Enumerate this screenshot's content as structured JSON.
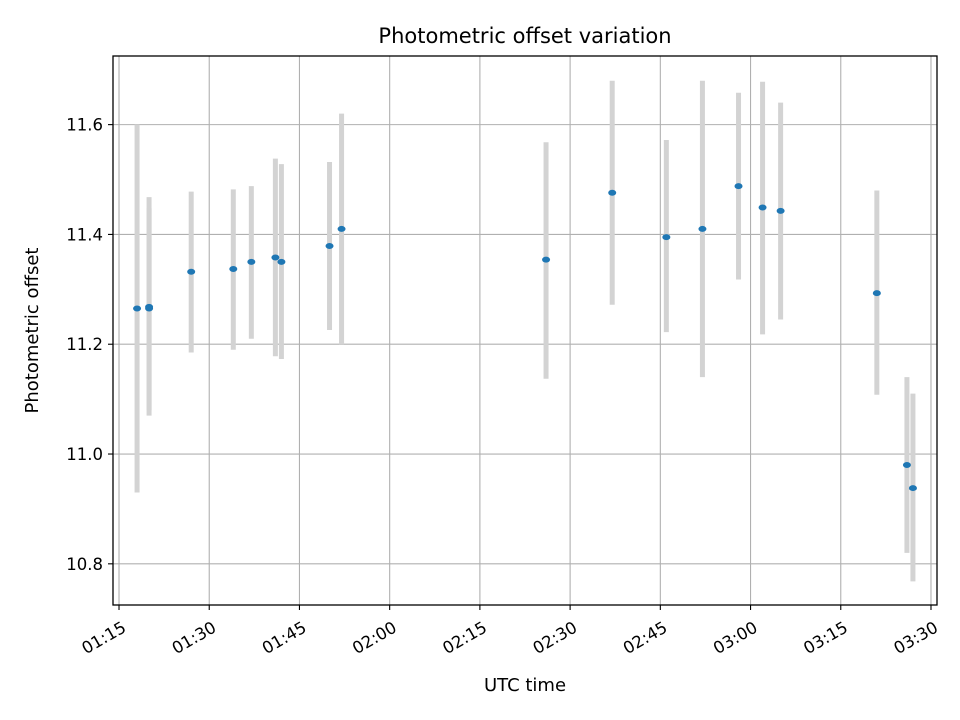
{
  "chart_data": {
    "type": "scatter",
    "title": "Photometric offset variation",
    "xlabel": "UTC time",
    "ylabel": "Photometric offset",
    "grid": true,
    "legend": "none",
    "xlim": [
      "01:14",
      "03:31"
    ],
    "ylim": [
      10.725,
      11.725
    ],
    "xticks": [
      "01:15",
      "01:30",
      "01:45",
      "02:00",
      "02:15",
      "02:30",
      "02:45",
      "03:00",
      "03:15",
      "03:30"
    ],
    "yticks": [
      10.8,
      11.0,
      11.2,
      11.4,
      11.6
    ],
    "colors": {
      "points": "#1f77b4",
      "error_bars": "#d3d3d3",
      "grid": "#b0b0b0"
    },
    "series": [
      {
        "x": [
          "01:18",
          "01:20",
          "01:20",
          "01:27",
          "01:34",
          "01:37",
          "01:41",
          "01:42",
          "01:50",
          "01:52",
          "02:26",
          "02:37",
          "02:46",
          "02:52",
          "02:58",
          "03:02",
          "03:05",
          "03:21",
          "03:26",
          "03:27"
        ],
        "y": [
          11.265,
          11.268,
          11.265,
          11.332,
          11.337,
          11.35,
          11.358,
          11.35,
          11.379,
          11.41,
          11.354,
          11.476,
          11.395,
          11.41,
          11.488,
          11.449,
          11.443,
          11.293,
          10.98,
          10.938
        ],
        "y_low": [
          10.93,
          11.07,
          11.08,
          11.185,
          11.19,
          11.21,
          11.178,
          11.173,
          11.226,
          11.2,
          11.137,
          11.272,
          11.222,
          11.14,
          11.318,
          11.218,
          11.245,
          11.108,
          10.82,
          10.768
        ],
        "y_high": [
          11.6,
          11.468,
          11.448,
          11.478,
          11.482,
          11.488,
          11.538,
          11.528,
          11.532,
          11.62,
          11.568,
          11.68,
          11.572,
          11.68,
          11.658,
          11.678,
          11.64,
          11.48,
          11.14,
          11.11
        ]
      }
    ]
  }
}
